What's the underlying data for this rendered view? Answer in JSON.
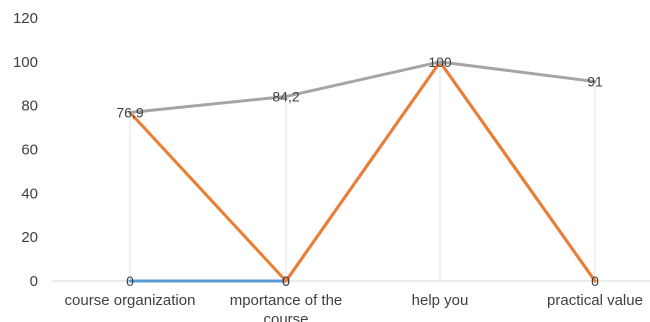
{
  "chart_data": {
    "type": "line",
    "title": "",
    "xlabel": "",
    "ylabel": "",
    "ylim": [
      0,
      120
    ],
    "yticks": [
      0,
      20,
      40,
      60,
      80,
      100,
      120
    ],
    "grid": "vertical drop lines",
    "legend": "none",
    "categories": [
      [
        "course organization"
      ],
      [
        "mportance of the",
        "course"
      ],
      [
        "help you"
      ],
      [
        "practical value"
      ]
    ],
    "series": [
      {
        "color": "#5B9BD5",
        "values": [
          0,
          0,
          100,
          0
        ],
        "labels": [
          "0",
          "0",
          "",
          "0"
        ]
      },
      {
        "color": "#ED7D31",
        "values": [
          76.9,
          0,
          100,
          0
        ],
        "labels": [
          "",
          "0",
          "",
          ""
        ]
      },
      {
        "color": "#A5A5A5",
        "values": [
          76.9,
          84.2,
          100,
          91
        ],
        "labels": [
          "76,9",
          "84,2",
          "100",
          "91"
        ]
      }
    ]
  }
}
